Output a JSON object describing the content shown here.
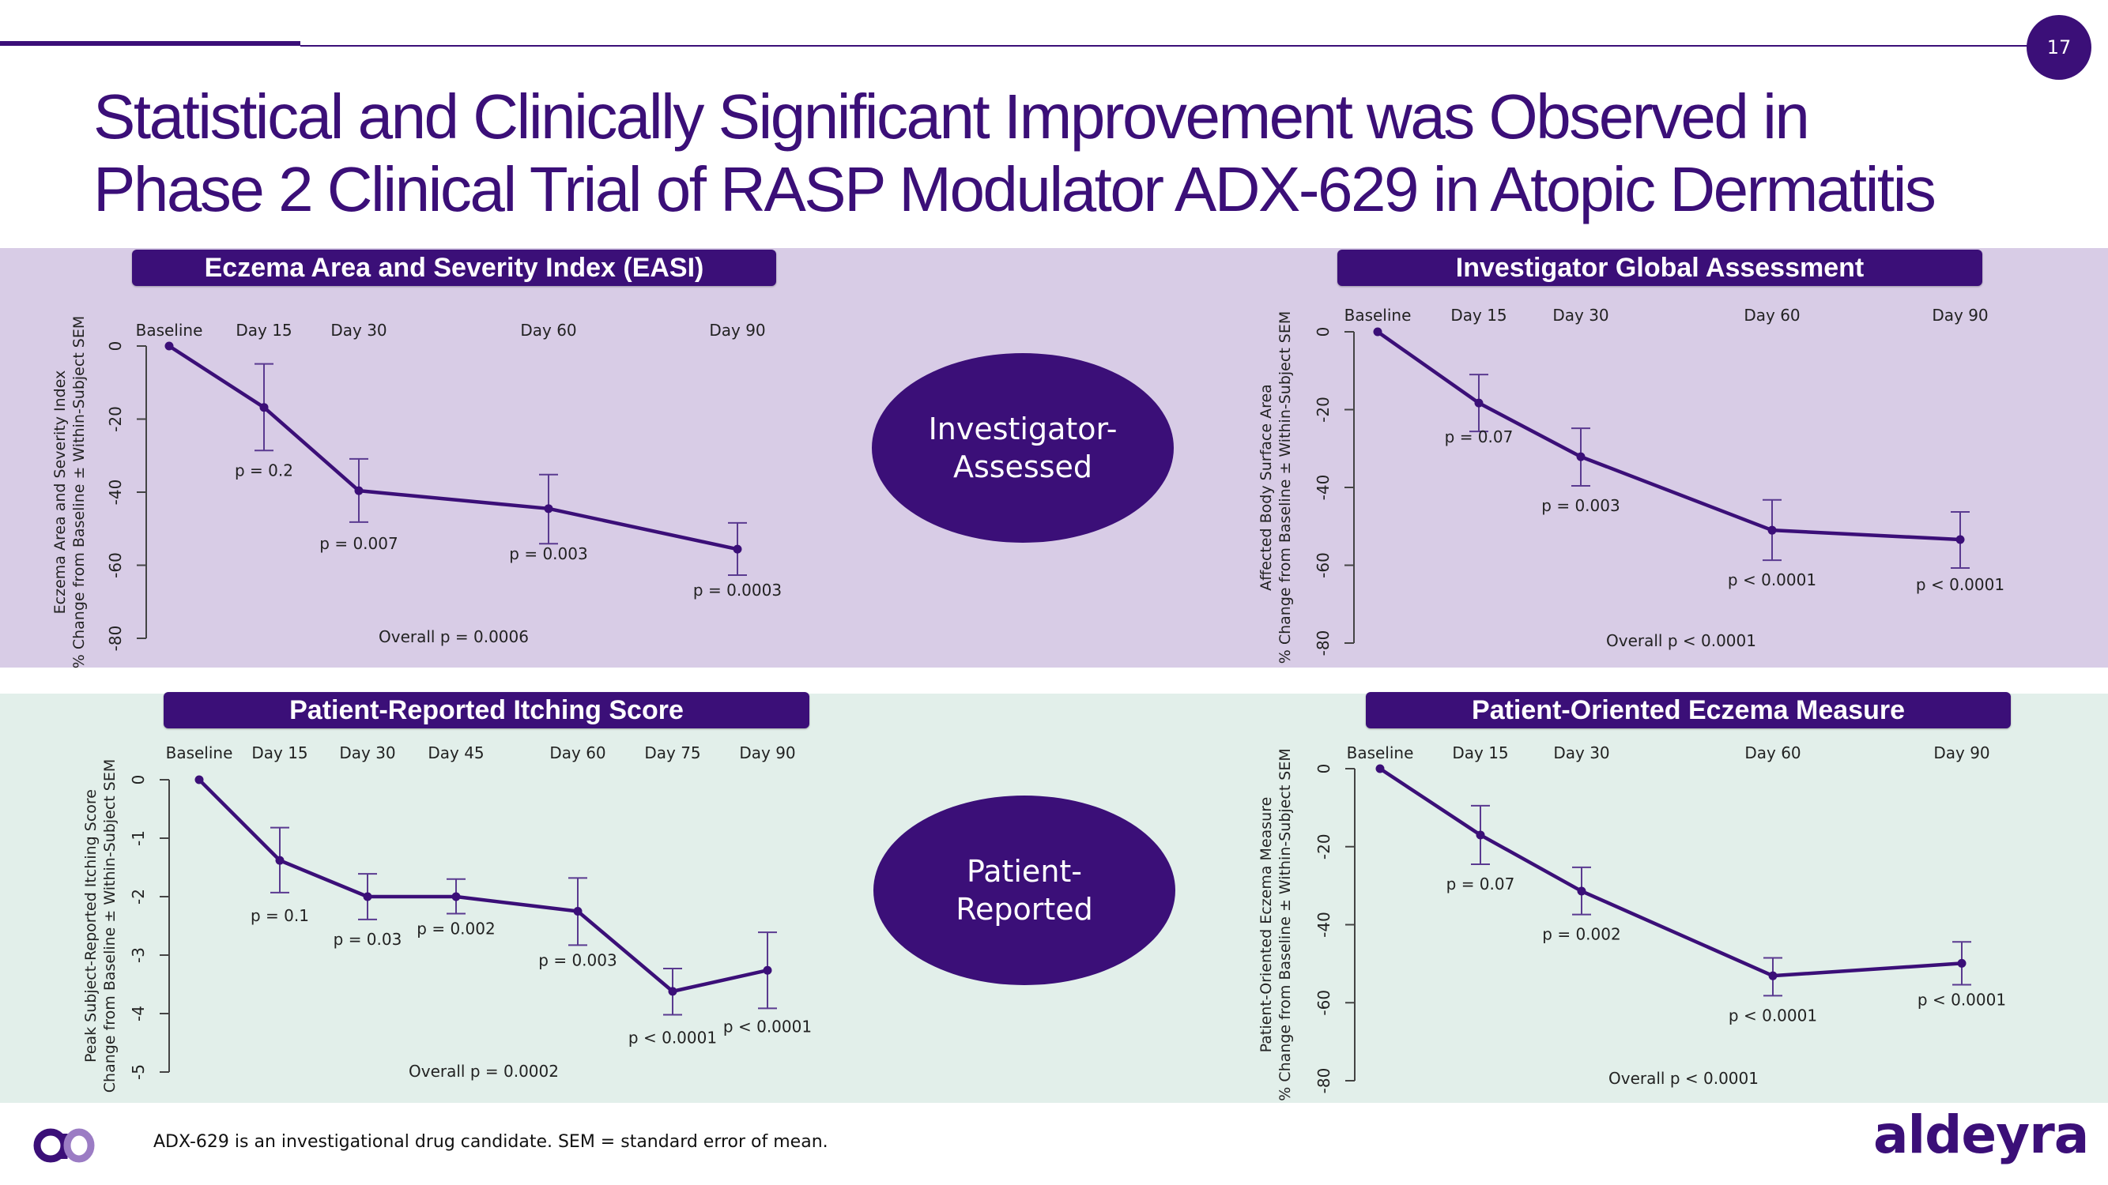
{
  "slide": {
    "page_number": "17",
    "title_lines": [
      "Statistical and Clinically Significant Improvement was Observed in",
      "Phase 2 Clinical Trial of RASP Modulator ADX-629 in Atopic Dermatitis"
    ],
    "ellipses": {
      "investigator": [
        "Investigator-",
        "Assessed"
      ],
      "patient": [
        "Patient-",
        "Reported"
      ]
    },
    "footer_note": "ADX-629 is an investigational drug candidate. SEM = standard error of mean.",
    "brand": "aldeyra",
    "colors": {
      "primary": "#3b0f78",
      "investigator_panel": "#d8cce6",
      "patient_panel": "#e2efea",
      "logo_light": "#9b7cc4"
    }
  },
  "chart_data": [
    {
      "id": "easi",
      "type": "line",
      "title": "Eczema Area and Severity Index (EASI)",
      "ylabel": [
        "Eczema Area and Severity Index",
        "% Change from Baseline ± Within-Subject SEM"
      ],
      "xlabel": "",
      "categories": [
        "Baseline",
        "Day 15",
        "Day 30",
        "Day 60",
        "Day 90"
      ],
      "x": [
        0,
        15,
        30,
        60,
        90
      ],
      "values": [
        0,
        -16.8,
        -39.6,
        -44.5,
        -55.6
      ],
      "error_low": [
        null,
        -28.6,
        -48.2,
        -54.1,
        -62.7
      ],
      "error_high": [
        null,
        -4.9,
        -30.9,
        -35.2,
        -48.4
      ],
      "p_values": [
        "",
        "p = 0.2",
        "p = 0.007",
        "p = 0.003",
        "p = 0.0003"
      ],
      "overall": "Overall p = 0.0006",
      "yticks": [
        0,
        -20,
        -40,
        -60,
        -80
      ],
      "ylim": [
        -80,
        0
      ],
      "grid": false,
      "legend": "none"
    },
    {
      "id": "iga",
      "type": "line",
      "title": "Investigator Global Assessment",
      "ylabel": [
        "Affected Body Surface Area",
        "% Change from Baseline ± Within-Subject SEM"
      ],
      "xlabel": "",
      "categories": [
        "Baseline",
        "Day 15",
        "Day 30",
        "Day 60",
        "Day 90"
      ],
      "x": [
        0,
        15,
        30,
        60,
        90
      ],
      "values": [
        0,
        -18.3,
        -32.1,
        -51.0,
        -53.4
      ],
      "error_low": [
        null,
        -25.6,
        -39.6,
        -58.7,
        -60.7
      ],
      "error_high": [
        null,
        -11.0,
        -24.8,
        -43.2,
        -46.3
      ],
      "p_values": [
        "",
        "p = 0.07",
        "p = 0.003",
        "p < 0.0001",
        "p < 0.0001"
      ],
      "overall": "Overall p < 0.0001",
      "yticks": [
        0,
        -20,
        -40,
        -60,
        -80
      ],
      "ylim": [
        -80,
        0
      ],
      "grid": false,
      "legend": "none"
    },
    {
      "id": "itch",
      "type": "line",
      "title": "Patient-Reported Itching Score",
      "ylabel": [
        "Peak Subject-Reported Itching Score",
        "Change from Baseline ± Within-Subject SEM"
      ],
      "xlabel": "",
      "categories": [
        "Baseline",
        "Day 15",
        "Day 30",
        "Day 45",
        "Day 60",
        "Day 75",
        "Day 90"
      ],
      "x": [
        0,
        15,
        30,
        45,
        60,
        75,
        90
      ],
      "values": [
        0,
        -1.38,
        -2.0,
        -2.0,
        -2.25,
        -3.62,
        -3.26
      ],
      "error_low": [
        null,
        -1.93,
        -2.39,
        -2.29,
        -2.83,
        -4.02,
        -3.91
      ],
      "error_high": [
        null,
        -0.82,
        -1.61,
        -1.7,
        -1.68,
        -3.23,
        -2.61
      ],
      "p_values": [
        "",
        "p = 0.1",
        "p = 0.03",
        "p = 0.002",
        "p = 0.003",
        "p < 0.0001",
        "p < 0.0001"
      ],
      "overall": "Overall p = 0.0002",
      "yticks": [
        0,
        -1,
        -2,
        -3,
        -4,
        -5
      ],
      "ylim": [
        -5,
        0
      ],
      "grid": false,
      "legend": "none"
    },
    {
      "id": "poem",
      "type": "line",
      "title": "Patient-Oriented Eczema Measure",
      "ylabel": [
        "Patient-Oriented Eczema Measure",
        "% Change from Baseline ± Within-Subject SEM"
      ],
      "xlabel": "",
      "categories": [
        "Baseline",
        "Day 15",
        "Day 30",
        "Day 60",
        "Day 90"
      ],
      "x": [
        0,
        15,
        30,
        60,
        90
      ],
      "values": [
        0,
        -17.0,
        -31.4,
        -53.1,
        -49.9
      ],
      "error_low": [
        null,
        -24.5,
        -37.4,
        -58.2,
        -55.4
      ],
      "error_high": [
        null,
        -9.5,
        -25.3,
        -48.5,
        -44.4
      ],
      "p_values": [
        "",
        "p = 0.07",
        "p = 0.002",
        "p < 0.0001",
        "p < 0.0001"
      ],
      "overall": "Overall p < 0.0001",
      "yticks": [
        0,
        -20,
        -40,
        -60,
        -80
      ],
      "ylim": [
        -80,
        0
      ],
      "grid": false,
      "legend": "none"
    }
  ]
}
